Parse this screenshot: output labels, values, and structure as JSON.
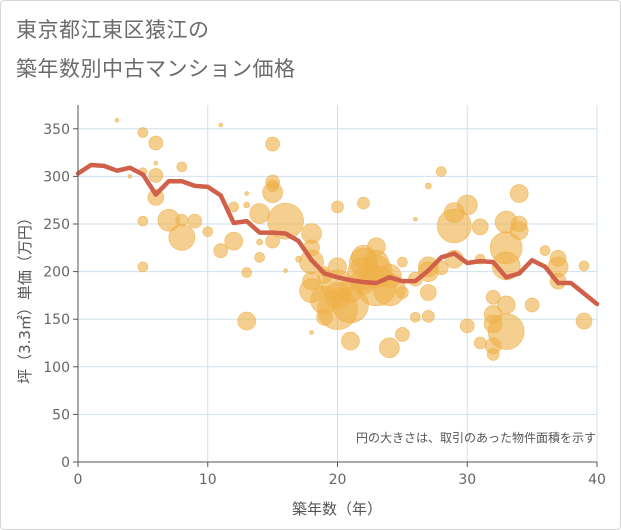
{
  "title_lines": [
    "東京都江東区猿江の",
    "築年数別中古マンション価格"
  ],
  "chart_data": {
    "type": "scatter",
    "xlabel": "築年数（年）",
    "ylabel": "坪（3.3㎡）単価（万円）",
    "xlim": [
      0,
      40
    ],
    "ylim": [
      0,
      375
    ],
    "x_ticks": [
      0,
      10,
      20,
      30,
      40
    ],
    "y_ticks": [
      0,
      50,
      100,
      150,
      200,
      250,
      300,
      350
    ],
    "grid": true,
    "annotation": "円の大きさは、取引のあった物件面積を示す",
    "colors": {
      "bubble": "#efb24a",
      "line": "#d0604a",
      "grid": "#cfe0ec",
      "axis": "#555555",
      "text": "#666666"
    },
    "line": {
      "x": [
        0,
        1,
        2,
        3,
        4,
        5,
        6,
        7,
        8,
        9,
        10,
        11,
        12,
        13,
        14,
        15,
        16,
        17,
        18,
        19,
        20,
        21,
        22,
        23,
        24,
        25,
        26,
        27,
        28,
        29,
        30,
        31,
        32,
        33,
        34,
        35,
        36,
        37,
        38,
        39,
        40
      ],
      "y": [
        303,
        312,
        311,
        306,
        309,
        302,
        281,
        295,
        295,
        290,
        289,
        280,
        251,
        253,
        241,
        241,
        240,
        232,
        212,
        198,
        194,
        191,
        189,
        188,
        194,
        190,
        190,
        201,
        215,
        219,
        209,
        211,
        210,
        194,
        198,
        212,
        205,
        188,
        188,
        177,
        166
      ]
    },
    "bubbles": [
      {
        "x": 3,
        "y": 359,
        "s": 2
      },
      {
        "x": 5,
        "y": 346,
        "s": 5
      },
      {
        "x": 6,
        "y": 335,
        "s": 7
      },
      {
        "x": 11,
        "y": 354,
        "s": 2
      },
      {
        "x": 5,
        "y": 305,
        "s": 4
      },
      {
        "x": 6,
        "y": 301,
        "s": 7
      },
      {
        "x": 6,
        "y": 314,
        "s": 2
      },
      {
        "x": 4,
        "y": 300,
        "s": 2
      },
      {
        "x": 8,
        "y": 310,
        "s": 5
      },
      {
        "x": 6,
        "y": 278,
        "s": 8
      },
      {
        "x": 5,
        "y": 253,
        "s": 5
      },
      {
        "x": 5,
        "y": 205,
        "s": 5
      },
      {
        "x": 7,
        "y": 254,
        "s": 11
      },
      {
        "x": 8,
        "y": 236,
        "s": 13
      },
      {
        "x": 8,
        "y": 254,
        "s": 6
      },
      {
        "x": 9,
        "y": 253,
        "s": 7
      },
      {
        "x": 10,
        "y": 242,
        "s": 5
      },
      {
        "x": 11,
        "y": 222,
        "s": 7
      },
      {
        "x": 12,
        "y": 268,
        "s": 5
      },
      {
        "x": 12,
        "y": 232,
        "s": 9
      },
      {
        "x": 13,
        "y": 282,
        "s": 2
      },
      {
        "x": 13,
        "y": 270,
        "s": 3
      },
      {
        "x": 13,
        "y": 199,
        "s": 5
      },
      {
        "x": 13,
        "y": 148,
        "s": 9
      },
      {
        "x": 14,
        "y": 261,
        "s": 10
      },
      {
        "x": 14,
        "y": 231,
        "s": 3
      },
      {
        "x": 14,
        "y": 215,
        "s": 5
      },
      {
        "x": 15,
        "y": 334,
        "s": 7
      },
      {
        "x": 15,
        "y": 294,
        "s": 7
      },
      {
        "x": 15,
        "y": 290,
        "s": 6
      },
      {
        "x": 15,
        "y": 283,
        "s": 10
      },
      {
        "x": 15,
        "y": 232,
        "s": 7
      },
      {
        "x": 16,
        "y": 253,
        "s": 18
      },
      {
        "x": 16,
        "y": 201,
        "s": 2
      },
      {
        "x": 17,
        "y": 213,
        "s": 3
      },
      {
        "x": 18,
        "y": 240,
        "s": 10
      },
      {
        "x": 18,
        "y": 225,
        "s": 8
      },
      {
        "x": 18,
        "y": 210,
        "s": 12
      },
      {
        "x": 18,
        "y": 190,
        "s": 9
      },
      {
        "x": 18,
        "y": 180,
        "s": 12
      },
      {
        "x": 18,
        "y": 136,
        "s": 2
      },
      {
        "x": 19,
        "y": 200,
        "s": 5
      },
      {
        "x": 19,
        "y": 195,
        "s": 7
      },
      {
        "x": 19,
        "y": 170,
        "s": 14
      },
      {
        "x": 19,
        "y": 152,
        "s": 8
      },
      {
        "x": 20,
        "y": 268,
        "s": 6
      },
      {
        "x": 20,
        "y": 205,
        "s": 9
      },
      {
        "x": 20,
        "y": 185,
        "s": 16
      },
      {
        "x": 20,
        "y": 175,
        "s": 13
      },
      {
        "x": 20,
        "y": 160,
        "s": 20
      },
      {
        "x": 21,
        "y": 180,
        "s": 12
      },
      {
        "x": 21,
        "y": 165,
        "s": 18
      },
      {
        "x": 21,
        "y": 127,
        "s": 9
      },
      {
        "x": 22,
        "y": 272,
        "s": 6
      },
      {
        "x": 22,
        "y": 215,
        "s": 12
      },
      {
        "x": 22,
        "y": 210,
        "s": 14
      },
      {
        "x": 22,
        "y": 198,
        "s": 16
      },
      {
        "x": 22,
        "y": 190,
        "s": 13
      },
      {
        "x": 23,
        "y": 226,
        "s": 9
      },
      {
        "x": 23,
        "y": 210,
        "s": 12
      },
      {
        "x": 23,
        "y": 200,
        "s": 16
      },
      {
        "x": 23,
        "y": 185,
        "s": 20
      },
      {
        "x": 24,
        "y": 195,
        "s": 12
      },
      {
        "x": 24,
        "y": 181,
        "s": 16
      },
      {
        "x": 24,
        "y": 120,
        "s": 10
      },
      {
        "x": 25,
        "y": 210,
        "s": 5
      },
      {
        "x": 25,
        "y": 178,
        "s": 6
      },
      {
        "x": 25,
        "y": 134,
        "s": 7
      },
      {
        "x": 26,
        "y": 255,
        "s": 2
      },
      {
        "x": 26,
        "y": 192,
        "s": 7
      },
      {
        "x": 26,
        "y": 152,
        "s": 5
      },
      {
        "x": 27,
        "y": 290,
        "s": 3
      },
      {
        "x": 27,
        "y": 205,
        "s": 10
      },
      {
        "x": 27,
        "y": 200,
        "s": 10
      },
      {
        "x": 27,
        "y": 178,
        "s": 8
      },
      {
        "x": 27,
        "y": 153,
        "s": 6
      },
      {
        "x": 28,
        "y": 305,
        "s": 5
      },
      {
        "x": 28,
        "y": 204,
        "s": 7
      },
      {
        "x": 29,
        "y": 262,
        "s": 10
      },
      {
        "x": 29,
        "y": 248,
        "s": 17
      },
      {
        "x": 29,
        "y": 213,
        "s": 9
      },
      {
        "x": 30,
        "y": 270,
        "s": 10
      },
      {
        "x": 30,
        "y": 143,
        "s": 7
      },
      {
        "x": 31,
        "y": 247,
        "s": 8
      },
      {
        "x": 31,
        "y": 213,
        "s": 5
      },
      {
        "x": 31,
        "y": 125,
        "s": 6
      },
      {
        "x": 32,
        "y": 173,
        "s": 7
      },
      {
        "x": 32,
        "y": 155,
        "s": 9
      },
      {
        "x": 32,
        "y": 145,
        "s": 9
      },
      {
        "x": 32,
        "y": 122,
        "s": 8
      },
      {
        "x": 32,
        "y": 113,
        "s": 6
      },
      {
        "x": 33,
        "y": 252,
        "s": 11
      },
      {
        "x": 33,
        "y": 225,
        "s": 16
      },
      {
        "x": 33,
        "y": 206,
        "s": 14
      },
      {
        "x": 33,
        "y": 165,
        "s": 9
      },
      {
        "x": 33,
        "y": 137,
        "s": 18
      },
      {
        "x": 34,
        "y": 282,
        "s": 9
      },
      {
        "x": 34,
        "y": 250,
        "s": 8
      },
      {
        "x": 34,
        "y": 243,
        "s": 9
      },
      {
        "x": 35,
        "y": 165,
        "s": 7
      },
      {
        "x": 36,
        "y": 222,
        "s": 5
      },
      {
        "x": 37,
        "y": 214,
        "s": 8
      },
      {
        "x": 37,
        "y": 205,
        "s": 10
      },
      {
        "x": 37,
        "y": 190,
        "s": 8
      },
      {
        "x": 39,
        "y": 206,
        "s": 5
      },
      {
        "x": 39,
        "y": 148,
        "s": 8
      }
    ]
  }
}
